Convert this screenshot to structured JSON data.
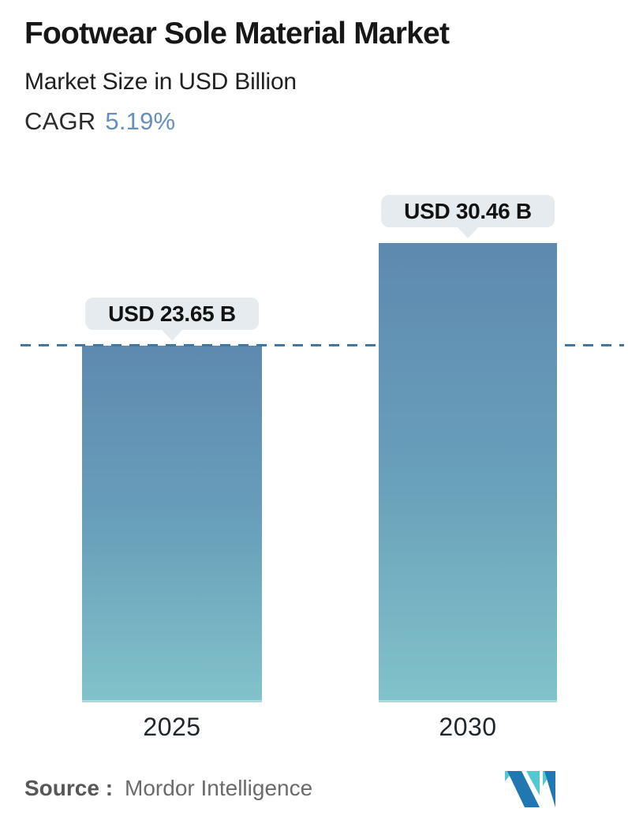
{
  "header": {
    "title": "Footwear Sole Material Market",
    "subtitle": "Market Size in USD Billion",
    "cagr_label": "CAGR",
    "cagr_value": "5.19%"
  },
  "chart_data": {
    "type": "bar",
    "title": "Footwear Sole Material Market",
    "ylabel": "Market Size in USD Billion",
    "unit": "USD Billion",
    "categories": [
      "2025",
      "2030"
    ],
    "values": [
      23.65,
      30.46
    ],
    "value_labels": [
      "USD 23.65 B",
      "USD 30.46 B"
    ],
    "cagr_percent": 5.19,
    "ylim": [
      0,
      32
    ],
    "grid": false,
    "legend": "none",
    "reference_line": {
      "style": "dashed",
      "value": 23.65,
      "color": "#44779f"
    },
    "bar_gradient_top": "#5e89b0",
    "bar_gradient_bottom": "#82c3ca",
    "label_bubble_bg": "#e5ebee",
    "label_text_color": "#121212"
  },
  "footer": {
    "source_label": "Source :",
    "source_value": "Mordor Intelligence",
    "logo_name": "mordor-intelligence-logo",
    "logo_teal": "#52c9d1",
    "logo_blue": "#2177b2"
  },
  "colors": {
    "title_text": "#171717",
    "cagr_accent": "#6490bb",
    "background": "#ffffff"
  }
}
